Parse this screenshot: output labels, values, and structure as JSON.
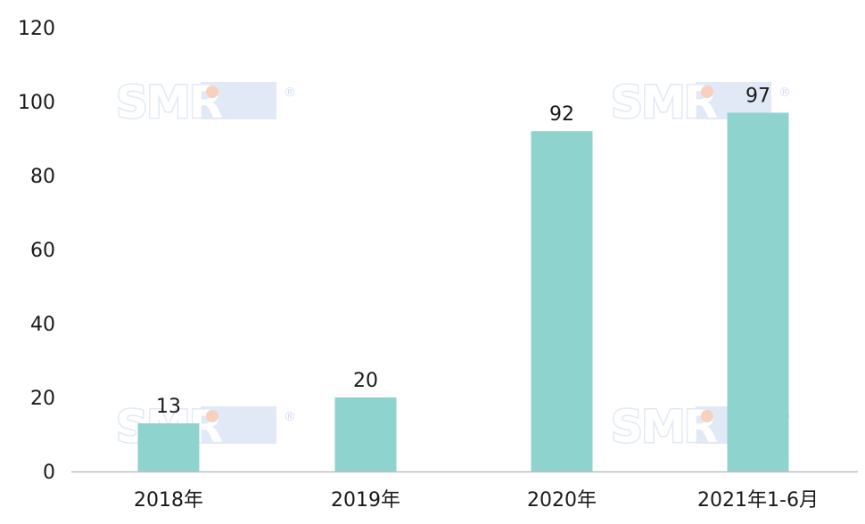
{
  "chart_data": {
    "type": "bar",
    "categories": [
      "2018年",
      "2019年",
      "2020年",
      "2021年1-6月"
    ],
    "values": [
      13,
      20,
      92,
      97
    ],
    "data_labels": [
      "13",
      "20",
      "92",
      "97"
    ],
    "title": "",
    "xlabel": "",
    "ylabel": "",
    "ylim": [
      0,
      120
    ],
    "yticks": [
      0,
      20,
      40,
      60,
      80,
      100,
      120
    ],
    "ytick_labels": [
      "0",
      "20",
      "40",
      "60",
      "80",
      "100",
      "120"
    ],
    "grid": false,
    "legend": "none",
    "bar_color": "#8fd3cf",
    "axis_color": "#bfbfbf"
  },
  "watermark": {
    "text": "SMR",
    "registered_mark": "®",
    "box_color": "#dce6f5",
    "dot_color": "#f7c9b3"
  }
}
